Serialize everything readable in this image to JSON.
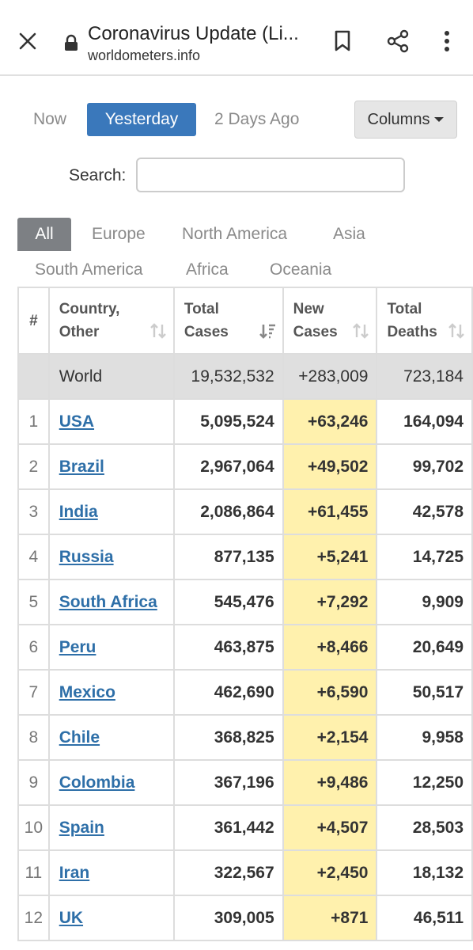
{
  "browser": {
    "title": "Coronavirus Update (Li...",
    "url": "worldometers.info"
  },
  "day_tabs": [
    "Now",
    "Yesterday",
    "2 Days Ago"
  ],
  "active_day": "Yesterday",
  "columns_label": "Columns",
  "search": {
    "label": "Search:",
    "value": ""
  },
  "region_tabs": [
    "All",
    "Europe",
    "North America",
    "Asia",
    "South America",
    "Africa",
    "Oceania"
  ],
  "active_region": "All",
  "table": {
    "headers": {
      "index": "#",
      "country_l1": "Country,",
      "country_l2": "Other",
      "cases_l1": "Total",
      "cases_l2": "Cases",
      "new_l1": "New",
      "new_l2": "Cases",
      "deaths_l1": "Total",
      "deaths_l2": "Deaths"
    },
    "world": {
      "country": "World",
      "total_cases": "19,532,532",
      "new_cases": "+283,009",
      "total_deaths": "723,184"
    },
    "rows": [
      {
        "index": "1",
        "country": "USA",
        "total_cases": "5,095,524",
        "new_cases": "+63,246",
        "total_deaths": "164,094"
      },
      {
        "index": "2",
        "country": "Brazil",
        "total_cases": "2,967,064",
        "new_cases": "+49,502",
        "total_deaths": "99,702"
      },
      {
        "index": "3",
        "country": "India",
        "total_cases": "2,086,864",
        "new_cases": "+61,455",
        "total_deaths": "42,578"
      },
      {
        "index": "4",
        "country": "Russia",
        "total_cases": "877,135",
        "new_cases": "+5,241",
        "total_deaths": "14,725"
      },
      {
        "index": "5",
        "country": "South Africa",
        "total_cases": "545,476",
        "new_cases": "+7,292",
        "total_deaths": "9,909"
      },
      {
        "index": "6",
        "country": "Peru",
        "total_cases": "463,875",
        "new_cases": "+8,466",
        "total_deaths": "20,649"
      },
      {
        "index": "7",
        "country": "Mexico",
        "total_cases": "462,690",
        "new_cases": "+6,590",
        "total_deaths": "50,517"
      },
      {
        "index": "8",
        "country": "Chile",
        "total_cases": "368,825",
        "new_cases": "+2,154",
        "total_deaths": "9,958"
      },
      {
        "index": "9",
        "country": "Colombia",
        "total_cases": "367,196",
        "new_cases": "+9,486",
        "total_deaths": "12,250"
      },
      {
        "index": "10",
        "country": "Spain",
        "total_cases": "361,442",
        "new_cases": "+4,507",
        "total_deaths": "28,503"
      },
      {
        "index": "11",
        "country": "Iran",
        "total_cases": "322,567",
        "new_cases": "+2,450",
        "total_deaths": "18,132"
      },
      {
        "index": "12",
        "country": "UK",
        "total_cases": "309,005",
        "new_cases": "+871",
        "total_deaths": "46,511"
      }
    ]
  },
  "colors": {
    "active_day_bg": "#3a78bb",
    "active_region_bg": "#7d8084",
    "link": "#2e6fa8",
    "new_cases_bg": "#fff1ad",
    "world_row_bg": "#dfdfdf"
  },
  "icons": [
    "close-icon",
    "lock-icon",
    "bookmark-icon",
    "share-icon",
    "more-vert-icon",
    "sort-icon",
    "caret-down-icon"
  ]
}
